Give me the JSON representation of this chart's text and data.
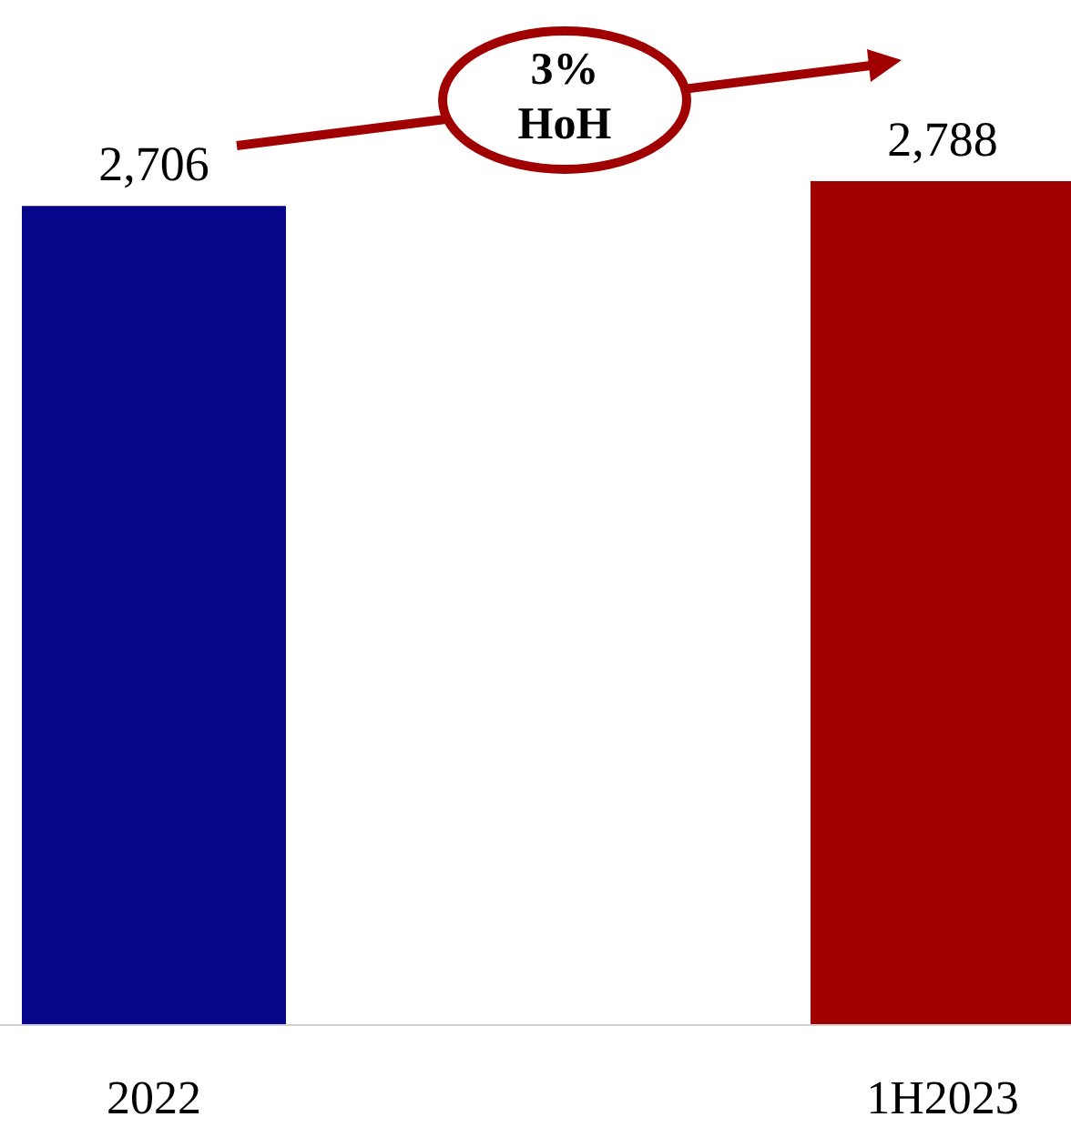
{
  "chart_data": {
    "type": "bar",
    "categories": [
      "2022",
      "1H2023"
    ],
    "values": [
      2706,
      2788
    ],
    "colors": [
      "#06068a",
      "#a00000"
    ],
    "value_labels": [
      "2,706",
      "2,788"
    ],
    "annotations": [
      "3% HoH"
    ]
  }
}
